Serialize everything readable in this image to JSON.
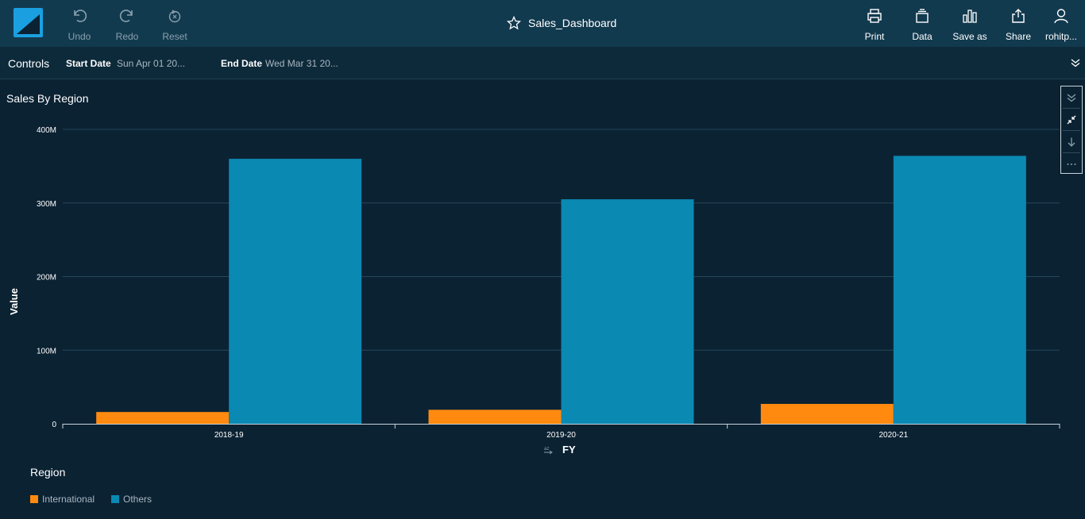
{
  "toolbar": {
    "undo_label": "Undo",
    "redo_label": "Redo",
    "reset_label": "Reset",
    "print_label": "Print",
    "data_label": "Data",
    "save_as_label": "Save as",
    "share_label": "Share",
    "user_label": "rohitp..."
  },
  "dashboard": {
    "title": "Sales_Dashboard"
  },
  "controls": {
    "label": "Controls",
    "start_date_label": "Start Date",
    "start_date_value": "Sun Apr 01 20...",
    "end_date_label": "End Date",
    "end_date_value": "Wed Mar 31 20..."
  },
  "visual": {
    "title": "Sales By Region",
    "menu_icons": [
      "collapse-icon",
      "minimize-icon",
      "download-icon",
      "more-icon"
    ]
  },
  "colors": {
    "international": "#ff8a0f",
    "others": "#0a89b3",
    "background": "#0b2233",
    "topbar": "#123a4f",
    "logo": "#1aa0e0"
  },
  "chart_data": {
    "type": "bar",
    "xlabel": "FY",
    "ylabel": "Value",
    "ylim": [
      0,
      400000000
    ],
    "yticks": [
      "0",
      "100M",
      "200M",
      "300M",
      "400M"
    ],
    "categories": [
      "2018-19",
      "2019-20",
      "2020-21"
    ],
    "series": [
      {
        "name": "International",
        "values": [
          16000000,
          19000000,
          27000000
        ]
      },
      {
        "name": "Others",
        "values": [
          360000000,
          305000000,
          364000000
        ]
      }
    ],
    "legend_title": "Region",
    "legend_position": "bottom-left",
    "grid": true
  }
}
